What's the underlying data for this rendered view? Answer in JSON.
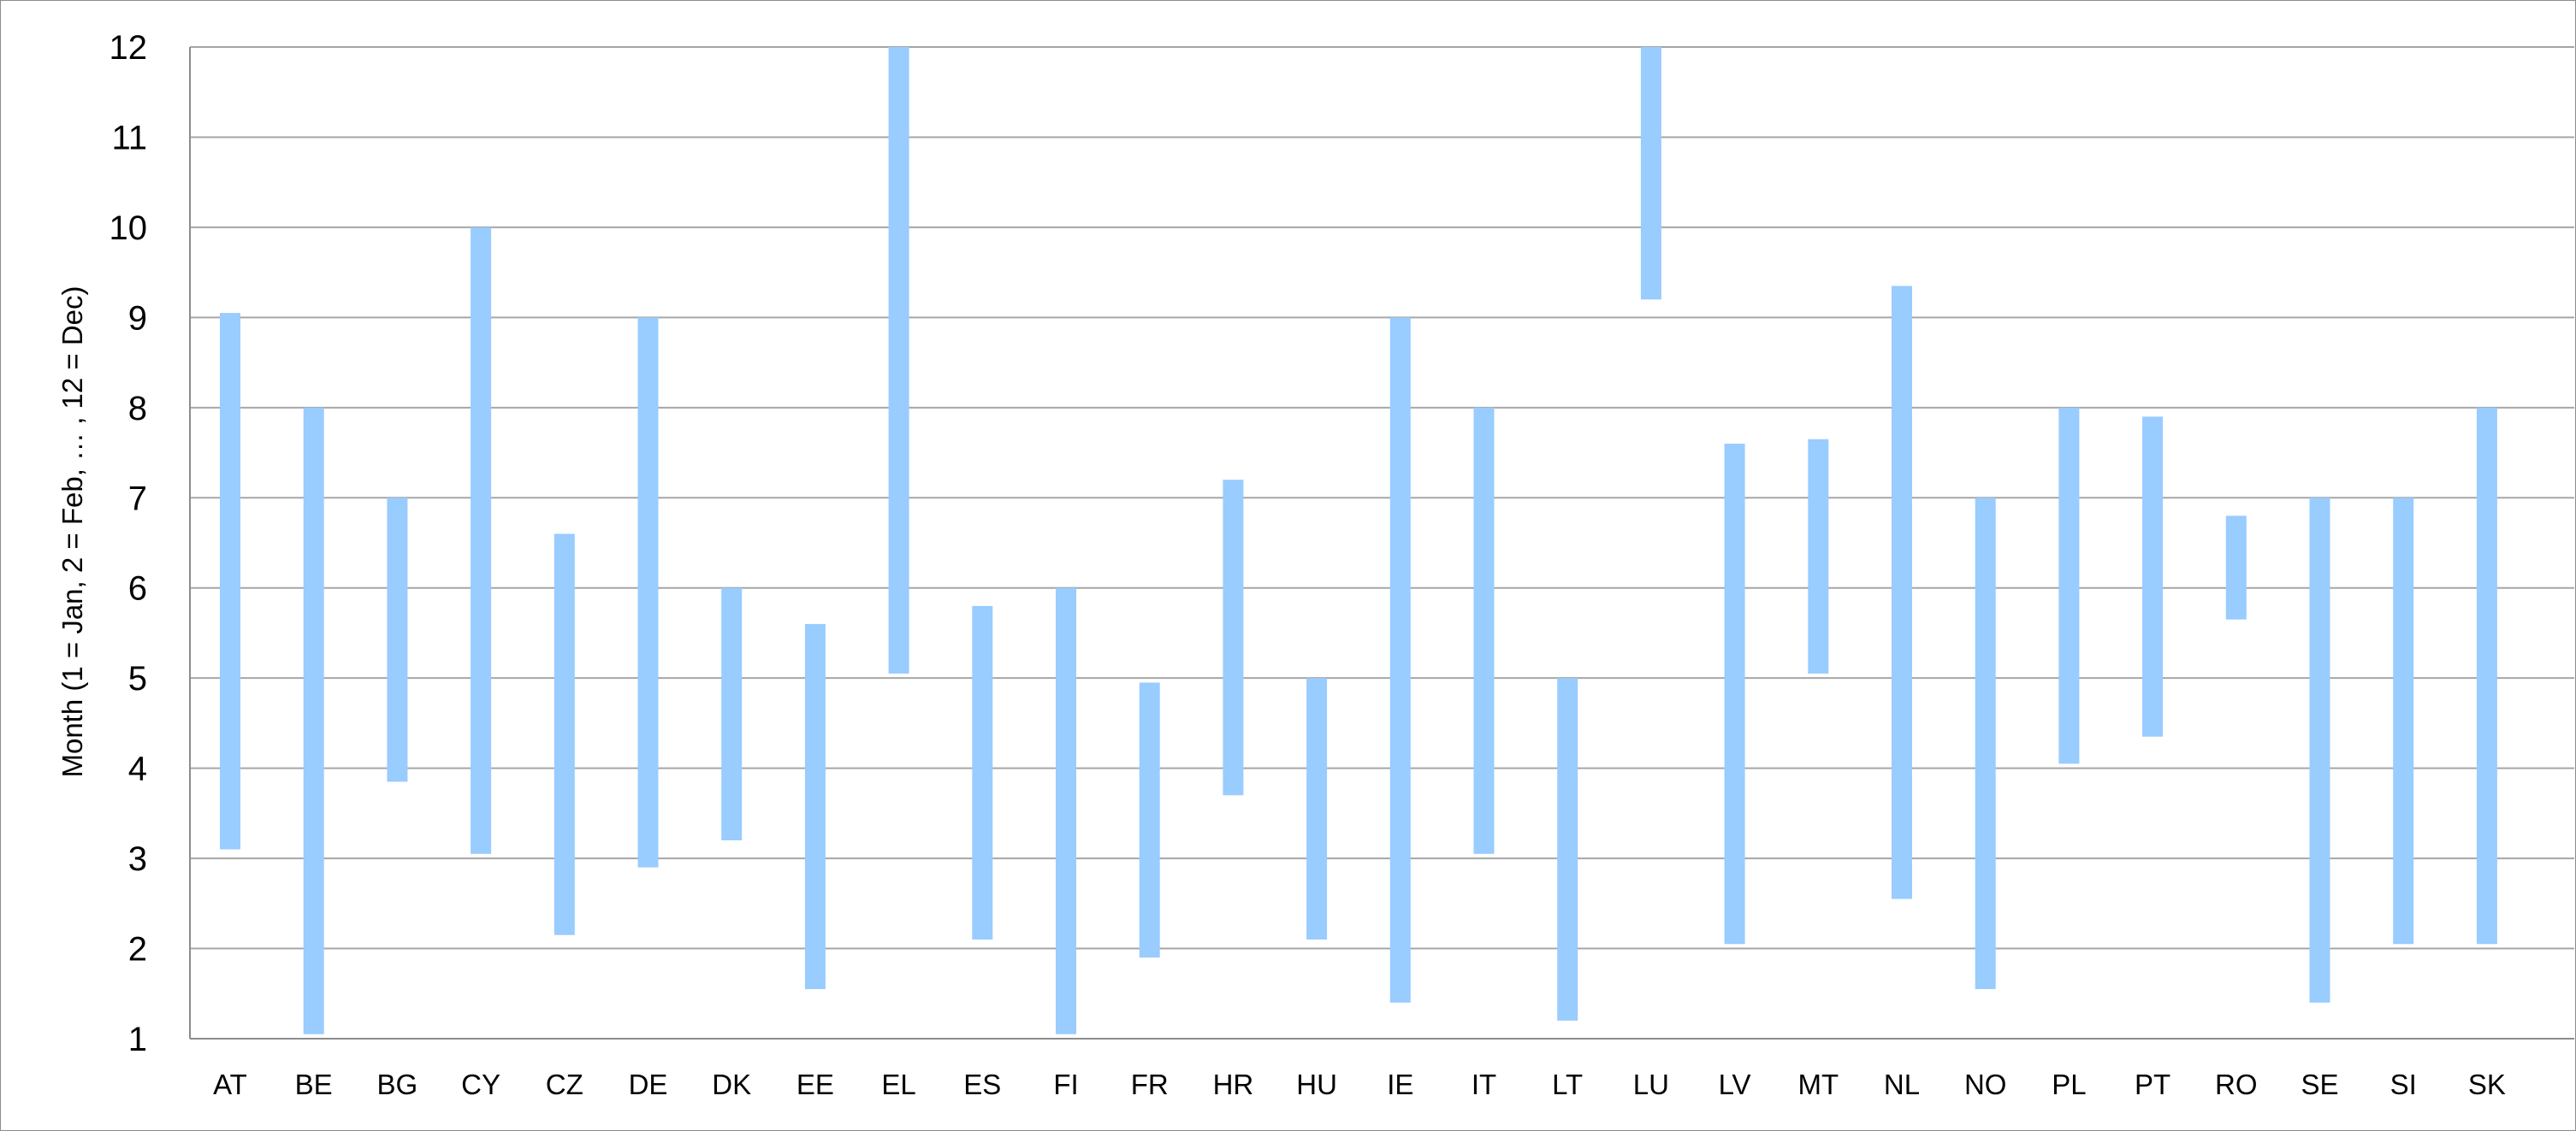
{
  "chart_data": {
    "type": "bar",
    "subtype": "floating-range",
    "title": "",
    "xlabel": "",
    "ylabel": "Month (1 = Jan, 2 = Feb, … , 12 = Dec)",
    "ylim": [
      1,
      12
    ],
    "yticks": [
      1,
      2,
      3,
      4,
      5,
      6,
      7,
      8,
      9,
      10,
      11,
      12
    ],
    "grid": true,
    "legend": "none",
    "bar_color": "#99ccff",
    "categories": [
      "AT",
      "BE",
      "BG",
      "CY",
      "CZ",
      "DE",
      "DK",
      "EE",
      "EL",
      "ES",
      "FI",
      "FR",
      "HR",
      "HU",
      "IE",
      "IT",
      "LT",
      "LU",
      "LV",
      "MT",
      "NL",
      "NO",
      "PL",
      "PT",
      "RO",
      "SE",
      "SI",
      "SK"
    ],
    "series": [
      {
        "low": [
          3.1,
          1.05,
          3.85,
          3.05,
          2.15,
          2.9,
          3.2,
          1.55,
          5.05,
          2.1,
          1.05,
          1.9,
          3.7,
          2.1,
          1.4,
          3.05,
          1.2,
          9.2,
          2.05,
          5.05,
          2.55,
          1.55,
          4.05,
          4.35,
          5.65,
          1.4,
          2.05,
          2.05
        ],
        "high": [
          9.05,
          8.0,
          7.0,
          10.0,
          6.6,
          9.0,
          6.0,
          5.6,
          12.0,
          5.8,
          6.0,
          4.95,
          7.2,
          5.0,
          9.0,
          8.0,
          5.0,
          12.0,
          7.6,
          7.65,
          9.35,
          7.0,
          8.0,
          7.9,
          6.8,
          7.0,
          7.0,
          8.0
        ]
      }
    ]
  }
}
